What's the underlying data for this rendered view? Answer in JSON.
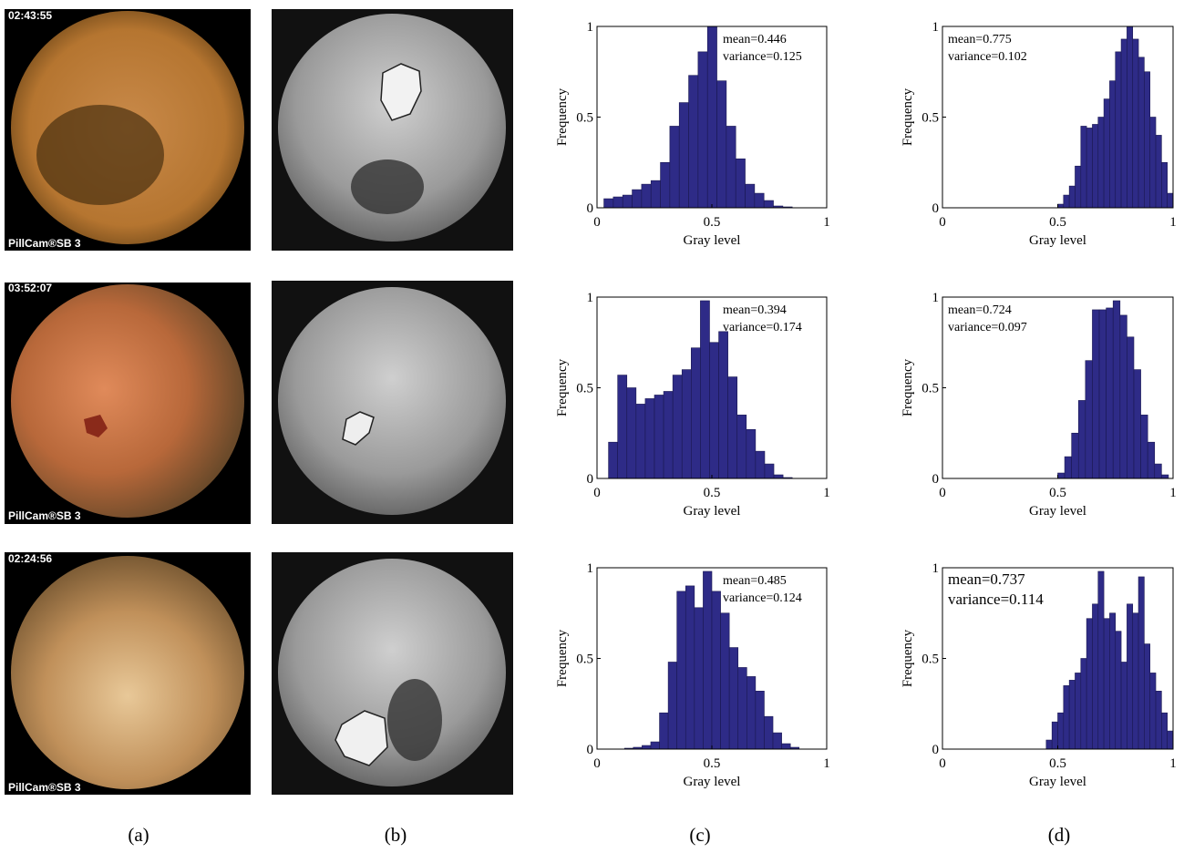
{
  "images": [
    {
      "timestamp": "02:43:55",
      "brand": "PillCam®SB 3"
    },
    {
      "timestamp": "03:52:07",
      "brand": "PillCam®SB 3"
    },
    {
      "timestamp": "02:24:56",
      "brand": "PillCam®SB 3"
    }
  ],
  "panel_labels": [
    "(a)",
    "(b)",
    "(c)",
    "(d)"
  ],
  "chart_data": [
    {
      "type": "histogram",
      "color": "#2e2b87",
      "xlabel": "Gray level",
      "ylabel": "Frequency",
      "annotations": [
        "mean=0.446",
        "variance=0.125"
      ],
      "bins": [
        0.03,
        0.071,
        0.112,
        0.153,
        0.194,
        0.235,
        0.276,
        0.317,
        0.358,
        0.399,
        0.44,
        0.481,
        0.522,
        0.563,
        0.604,
        0.645,
        0.686,
        0.727,
        0.768,
        0.809,
        0.85
      ],
      "values": [
        0.05,
        0.06,
        0.07,
        0.1,
        0.13,
        0.15,
        0.25,
        0.45,
        0.58,
        0.73,
        0.86,
        1.0,
        0.7,
        0.45,
        0.27,
        0.13,
        0.08,
        0.04,
        0.01,
        0.005
      ],
      "xlim": [
        0,
        1
      ],
      "ylim": [
        0,
        1
      ],
      "xticks": [
        0,
        0.5,
        1
      ],
      "yticks": [
        0,
        0.5,
        1
      ]
    },
    {
      "type": "histogram",
      "color": "#2e2b87",
      "xlabel": "Gray level",
      "ylabel": "Frequency",
      "annotations": [
        "mean=0.775",
        "variance=0.102"
      ],
      "bins": [
        0.5,
        0.525,
        0.55,
        0.575,
        0.6,
        0.625,
        0.65,
        0.675,
        0.7,
        0.725,
        0.75,
        0.775,
        0.8,
        0.825,
        0.85,
        0.875,
        0.9,
        0.925,
        0.95,
        0.975,
        1.0
      ],
      "values": [
        0.02,
        0.07,
        0.12,
        0.23,
        0.45,
        0.44,
        0.46,
        0.5,
        0.6,
        0.7,
        0.86,
        0.93,
        1.0,
        0.93,
        0.83,
        0.75,
        0.5,
        0.4,
        0.25,
        0.08
      ],
      "xlim": [
        0,
        1
      ],
      "ylim": [
        0,
        1
      ],
      "xticks": [
        0,
        0.5,
        1
      ],
      "yticks": [
        0,
        0.5,
        1
      ]
    },
    {
      "type": "histogram",
      "color": "#2e2b87",
      "xlabel": "Gray level",
      "ylabel": "Frequency",
      "annotations": [
        "mean=0.394",
        "variance=0.174"
      ],
      "bins": [
        0.05,
        0.09,
        0.13,
        0.17,
        0.21,
        0.25,
        0.29,
        0.33,
        0.37,
        0.41,
        0.45,
        0.49,
        0.53,
        0.57,
        0.61,
        0.65,
        0.69,
        0.73,
        0.77,
        0.81,
        0.85
      ],
      "values": [
        0.2,
        0.57,
        0.5,
        0.41,
        0.44,
        0.46,
        0.48,
        0.57,
        0.6,
        0.72,
        0.98,
        0.75,
        0.81,
        0.56,
        0.35,
        0.27,
        0.15,
        0.08,
        0.02,
        0.005
      ],
      "xlim": [
        0,
        1
      ],
      "ylim": [
        0,
        1
      ],
      "xticks": [
        0,
        0.5,
        1
      ],
      "yticks": [
        0,
        0.5,
        1
      ]
    },
    {
      "type": "histogram",
      "color": "#2e2b87",
      "xlabel": "Gray level",
      "ylabel": "Frequency",
      "annotations": [
        "mean=0.724",
        "variance=0.097"
      ],
      "bins": [
        0.5,
        0.53,
        0.56,
        0.59,
        0.62,
        0.65,
        0.68,
        0.71,
        0.74,
        0.77,
        0.8,
        0.83,
        0.86,
        0.89,
        0.92,
        0.95,
        0.98
      ],
      "values": [
        0.03,
        0.12,
        0.25,
        0.43,
        0.65,
        0.93,
        0.93,
        0.94,
        0.98,
        0.9,
        0.78,
        0.6,
        0.35,
        0.2,
        0.08,
        0.02
      ],
      "xlim": [
        0,
        1
      ],
      "ylim": [
        0,
        1
      ],
      "xticks": [
        0,
        0.5,
        1
      ],
      "yticks": [
        0,
        0.5,
        1
      ]
    },
    {
      "type": "histogram",
      "color": "#2e2b87",
      "xlabel": "Gray level",
      "ylabel": "Frequency",
      "annotations": [
        "mean=0.485",
        "variance=0.124"
      ],
      "bins": [
        0.12,
        0.158,
        0.196,
        0.234,
        0.272,
        0.31,
        0.348,
        0.386,
        0.424,
        0.462,
        0.5,
        0.538,
        0.576,
        0.614,
        0.652,
        0.69,
        0.728,
        0.766,
        0.804,
        0.842,
        0.88
      ],
      "values": [
        0.005,
        0.01,
        0.02,
        0.04,
        0.2,
        0.48,
        0.87,
        0.9,
        0.78,
        0.98,
        0.87,
        0.75,
        0.56,
        0.45,
        0.4,
        0.32,
        0.18,
        0.09,
        0.03,
        0.01
      ],
      "xlim": [
        0,
        1
      ],
      "ylim": [
        0,
        1
      ],
      "xticks": [
        0,
        0.5,
        1
      ],
      "yticks": [
        0,
        0.5,
        1
      ]
    },
    {
      "type": "histogram",
      "color": "#2e2b87",
      "xlabel": "Gray level",
      "ylabel": "Frequency",
      "annotations": [
        "mean=0.737",
        "variance=0.114"
      ],
      "bins": [
        0.45,
        0.475,
        0.5,
        0.525,
        0.55,
        0.575,
        0.6,
        0.625,
        0.65,
        0.675,
        0.7,
        0.725,
        0.75,
        0.775,
        0.8,
        0.825,
        0.85,
        0.875,
        0.9,
        0.925,
        0.95,
        0.975,
        1.0
      ],
      "values": [
        0.05,
        0.15,
        0.2,
        0.35,
        0.38,
        0.42,
        0.5,
        0.72,
        0.8,
        0.98,
        0.72,
        0.75,
        0.65,
        0.48,
        0.8,
        0.75,
        0.95,
        0.58,
        0.42,
        0.32,
        0.2,
        0.1
      ],
      "xlim": [
        0,
        1
      ],
      "ylim": [
        0,
        1
      ],
      "xticks": [
        0,
        0.5,
        1
      ],
      "yticks": [
        0,
        0.5,
        1
      ]
    }
  ]
}
